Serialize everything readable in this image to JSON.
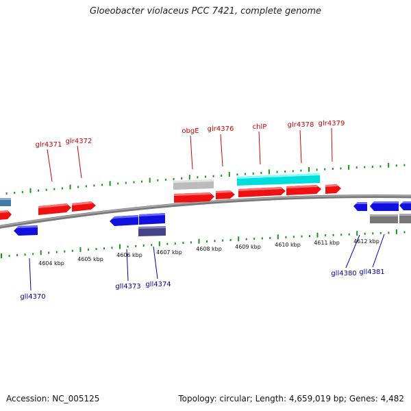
{
  "title": "Gloeobacter violaceus PCC 7421, complete genome",
  "accession": "Accession: NC_005125",
  "topology": "Topology: circular; Length: 4,659,019 bp; Genes: 4,482",
  "colors": {
    "forward_gene": "#ee1111",
    "reverse_gene": "#1111dd",
    "rna_forward": "#00e5e5",
    "pseudo_gray": "#bbbbbb",
    "dark_reverse": "#444488",
    "steel_blue": "#4477aa",
    "gray_reverse": "#777777",
    "tick_green": "#119911",
    "forward_label": "#cc0000",
    "reverse_label": "#0000aa",
    "backbone": "#808080"
  },
  "kbp_labels": [
    "4604 kbp",
    "4605 kbp",
    "4606 kbp",
    "4607 kbp",
    "4608 kbp",
    "4609 kbp",
    "4610 kbp",
    "4611 kbp",
    "4612 kbp"
  ],
  "forward_gene_labels": [
    "glr4371",
    "glr4372",
    "obgE",
    "glr4376",
    "chlP",
    "glr4378",
    "glr4379"
  ],
  "reverse_gene_labels": [
    "gll4370",
    "gll4373",
    "gll4374",
    "gll4380",
    "gll4381"
  ]
}
